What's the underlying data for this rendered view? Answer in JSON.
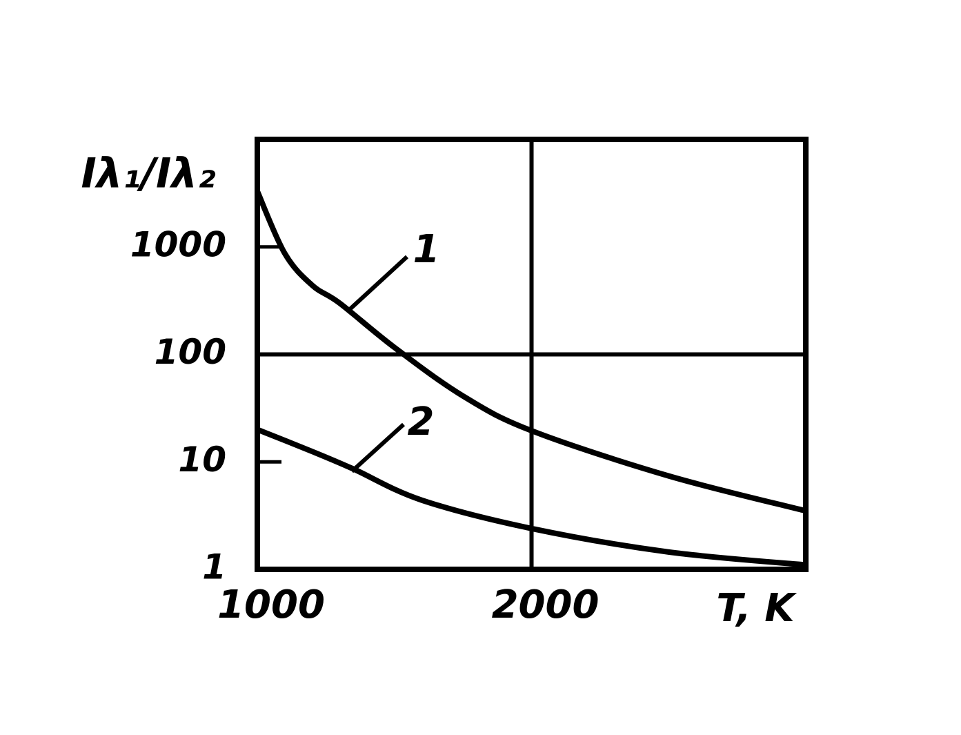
{
  "chart_data": {
    "type": "line",
    "y_label": "Iλ₁/Iλ₂",
    "x_label": "T, K",
    "xlim": [
      1000,
      3000
    ],
    "xticks": [
      1000,
      2000
    ],
    "ylim": [
      1,
      10000
    ],
    "yticks": [
      1,
      10,
      100,
      1000
    ],
    "y_log": true,
    "x_grid": [
      2000
    ],
    "y_grid": [
      100
    ],
    "series": [
      {
        "name": "1",
        "color": "#000000",
        "x": [
          1000,
          1100,
          1200,
          1300,
          1500,
          1750,
          2000,
          2500,
          3000
        ],
        "values": [
          3300,
          870,
          440,
          300,
          116,
          41,
          19.5,
          7.4,
          3.5
        ]
      },
      {
        "name": "2",
        "color": "#000000",
        "x": [
          1000,
          1200,
          1350,
          1600,
          2000,
          2500,
          3000
        ],
        "values": [
          20,
          12.5,
          8.6,
          4.4,
          2.4,
          1.45,
          1.1
        ]
      }
    ]
  }
}
